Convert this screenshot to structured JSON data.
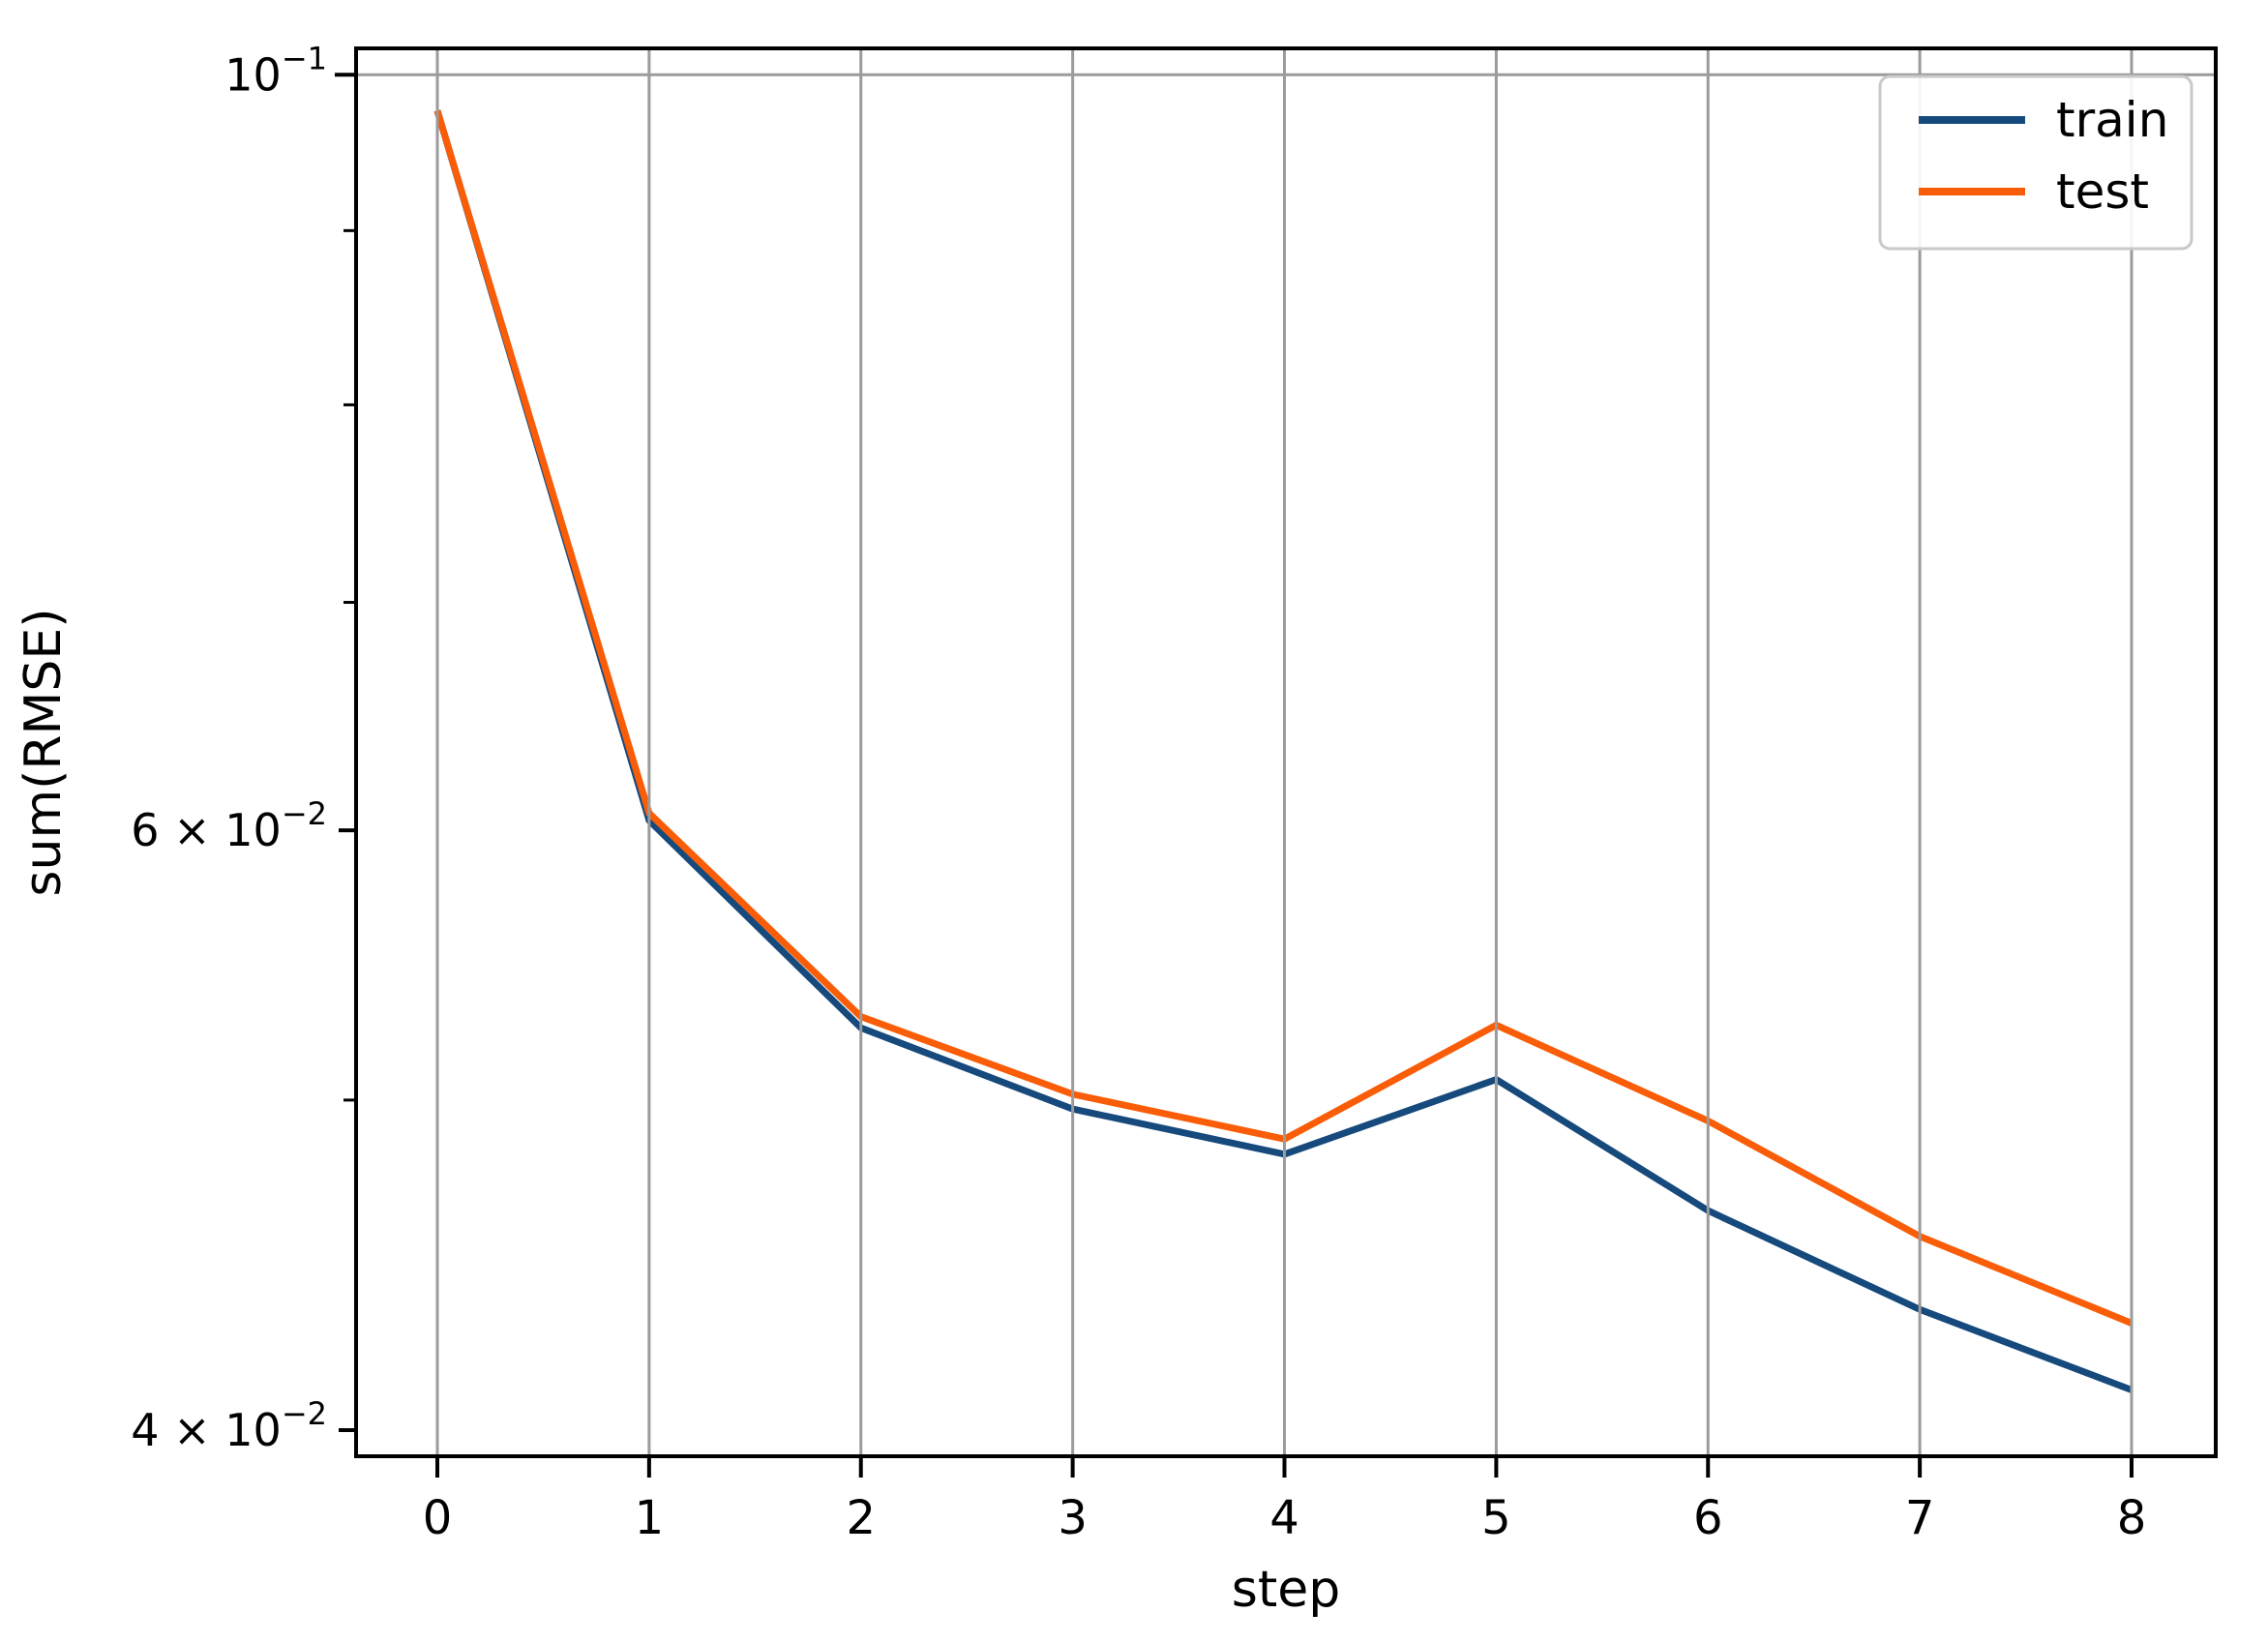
{
  "chart_data": {
    "type": "line",
    "title": "",
    "xlabel": "step",
    "ylabel": "sum(RMSE)",
    "yscale": "log",
    "x": [
      0,
      1,
      2,
      3,
      4,
      5,
      6,
      7,
      8
    ],
    "series": [
      {
        "name": "train",
        "color": "#16497c",
        "values": [
          0.0976,
          0.0604,
          0.0525,
          0.0497,
          0.0482,
          0.0507,
          0.0464,
          0.0434,
          0.0411
        ]
      },
      {
        "name": "test",
        "color": "#f95d08",
        "values": [
          0.0976,
          0.0607,
          0.0529,
          0.0502,
          0.0487,
          0.0526,
          0.0493,
          0.0456,
          0.043
        ]
      }
    ],
    "xlim": [
      -0.3838,
      8.3975
    ],
    "ylim": [
      0.0393,
      0.1018
    ],
    "xticks": [
      {
        "value": 0,
        "label": "0"
      },
      {
        "value": 1,
        "label": "1"
      },
      {
        "value": 2,
        "label": "2"
      },
      {
        "value": 3,
        "label": "3"
      },
      {
        "value": 4,
        "label": "4"
      },
      {
        "value": 5,
        "label": "5"
      },
      {
        "value": 6,
        "label": "6"
      },
      {
        "value": 7,
        "label": "7"
      },
      {
        "value": 8,
        "label": "8"
      }
    ],
    "yticks": [
      {
        "value": 0.1,
        "base": "10",
        "sup": "−1",
        "major": true
      },
      {
        "value": 0.06,
        "base": "6 × 10",
        "sup": "−2",
        "major": false
      },
      {
        "value": 0.04,
        "base": "4 × 10",
        "sup": "−2",
        "major": false
      }
    ],
    "yticks_minor": [
      0.09,
      0.08,
      0.07,
      0.05
    ],
    "grid": {
      "vertical_at_xticks": true,
      "horizontal_at_values": [
        0.1
      ],
      "color": "#9b9b9b",
      "on_top": true
    },
    "legend": {
      "position": "upper right",
      "entries": [
        {
          "label": "train",
          "color": "#16497c"
        },
        {
          "label": "test",
          "color": "#f95d08"
        }
      ],
      "border_color": "#c9c9c9",
      "background": "#ffffff"
    },
    "spine_color": "#000000",
    "background": "#ffffff"
  }
}
